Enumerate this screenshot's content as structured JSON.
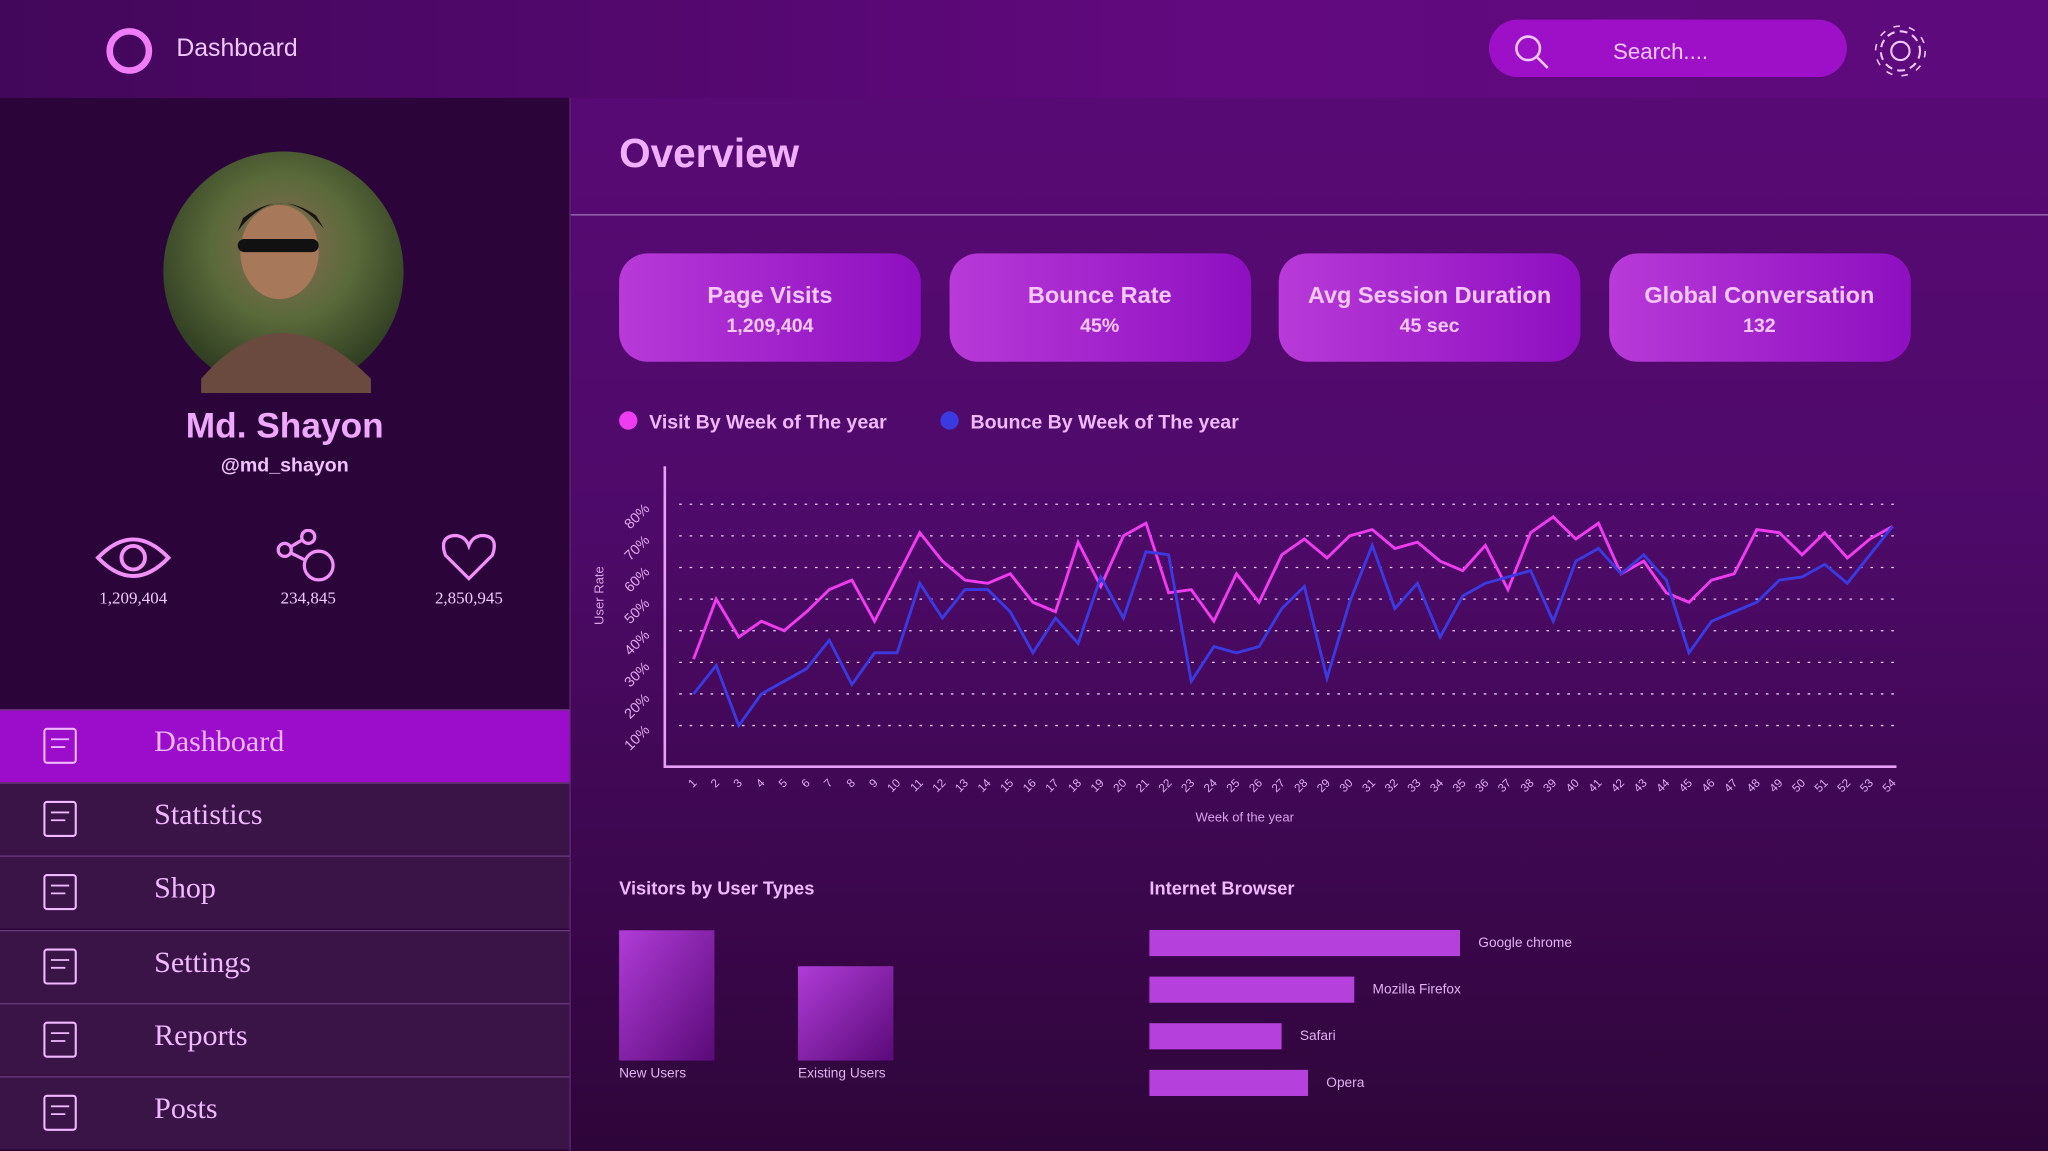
{
  "header": {
    "title": "Dashboard",
    "search_placeholder": "Search...."
  },
  "profile": {
    "name": "Md. Shayon",
    "handle": "@md_shayon",
    "stats": [
      "1,209,404",
      "234,845",
      "2,850,945"
    ]
  },
  "nav": [
    "Dashboard",
    "Statistics",
    "Shop",
    "Settings",
    "Reports",
    "Posts"
  ],
  "overview": {
    "title": "Overview",
    "kpis": [
      {
        "label": "Page Visits",
        "value": "1,209,404"
      },
      {
        "label": "Bounce Rate",
        "value": "45%"
      },
      {
        "label": "Avg Session Duration",
        "value": "45 sec"
      },
      {
        "label": "Global Conversation",
        "value": "132"
      }
    ]
  },
  "chart_data": [
    {
      "type": "line",
      "y_label": "User Rate",
      "x_label": "Week of the year",
      "categories": [
        "1",
        "2",
        "3",
        "4",
        "5",
        "6",
        "7",
        "8",
        "9",
        "10",
        "11",
        "12",
        "13",
        "14",
        "15",
        "16",
        "17",
        "18",
        "19",
        "20",
        "21",
        "22",
        "23",
        "24",
        "25",
        "26",
        "27",
        "28",
        "29",
        "30",
        "31",
        "32",
        "33",
        "34",
        "35",
        "36",
        "37",
        "38",
        "39",
        "40",
        "41",
        "42",
        "43",
        "44",
        "45",
        "46",
        "47",
        "48",
        "49",
        "50",
        "51",
        "52",
        "53",
        "54"
      ],
      "series": [
        {
          "name": "Visit By Week of The year",
          "color": "#f03cf0",
          "values": [
            31,
            50,
            38,
            43,
            40,
            46,
            53,
            56,
            43,
            57,
            71,
            62,
            56,
            55,
            58,
            49,
            46,
            68,
            54,
            70,
            74,
            52,
            53,
            43,
            58,
            49,
            64,
            69,
            63,
            70,
            72,
            66,
            68,
            62,
            59,
            67,
            53,
            71,
            76,
            69,
            74,
            58,
            62,
            52,
            49,
            56,
            58,
            72,
            71,
            64,
            71,
            63,
            69,
            73
          ]
        },
        {
          "name": "Bounce By Week of The year",
          "color": "#3a3ae0",
          "values": [
            20,
            29,
            10,
            20,
            24,
            28,
            37,
            23,
            33,
            33,
            55,
            44,
            53,
            53,
            46,
            33,
            44,
            36,
            57,
            44,
            65,
            64,
            24,
            35,
            33,
            35,
            47,
            54,
            25,
            49,
            67,
            47,
            55,
            38,
            51,
            55,
            57,
            59,
            43,
            62,
            66,
            58,
            64,
            56,
            33,
            43,
            46,
            49,
            56,
            57,
            61,
            55,
            64,
            73
          ]
        }
      ],
      "ylim": [
        -3,
        92
      ],
      "yticks": [
        {
          "value": 10,
          "label": "10%"
        },
        {
          "value": 20,
          "label": "20%"
        },
        {
          "value": 30,
          "label": "30%"
        },
        {
          "value": 40,
          "label": "40%"
        },
        {
          "value": 50,
          "label": "50%"
        },
        {
          "value": 60,
          "label": "60%"
        },
        {
          "value": 70,
          "label": "70%"
        },
        {
          "value": 80,
          "label": "80%"
        }
      ],
      "grid": true
    },
    {
      "type": "bar",
      "title": "Visitors by User Types",
      "categories": [
        "New Users",
        "Existing Users"
      ],
      "values": [
        58,
        42
      ],
      "ylim": [
        0,
        100
      ],
      "color": "#b03cd8"
    },
    {
      "type": "hbar",
      "title": "Internet Browser",
      "categories": [
        "Google chrome",
        "Mozilla Firefox",
        "Safari",
        "Opera"
      ],
      "values": [
        47,
        31,
        20,
        24
      ],
      "xlim": [
        0,
        100
      ],
      "color": "#b540dc"
    }
  ]
}
